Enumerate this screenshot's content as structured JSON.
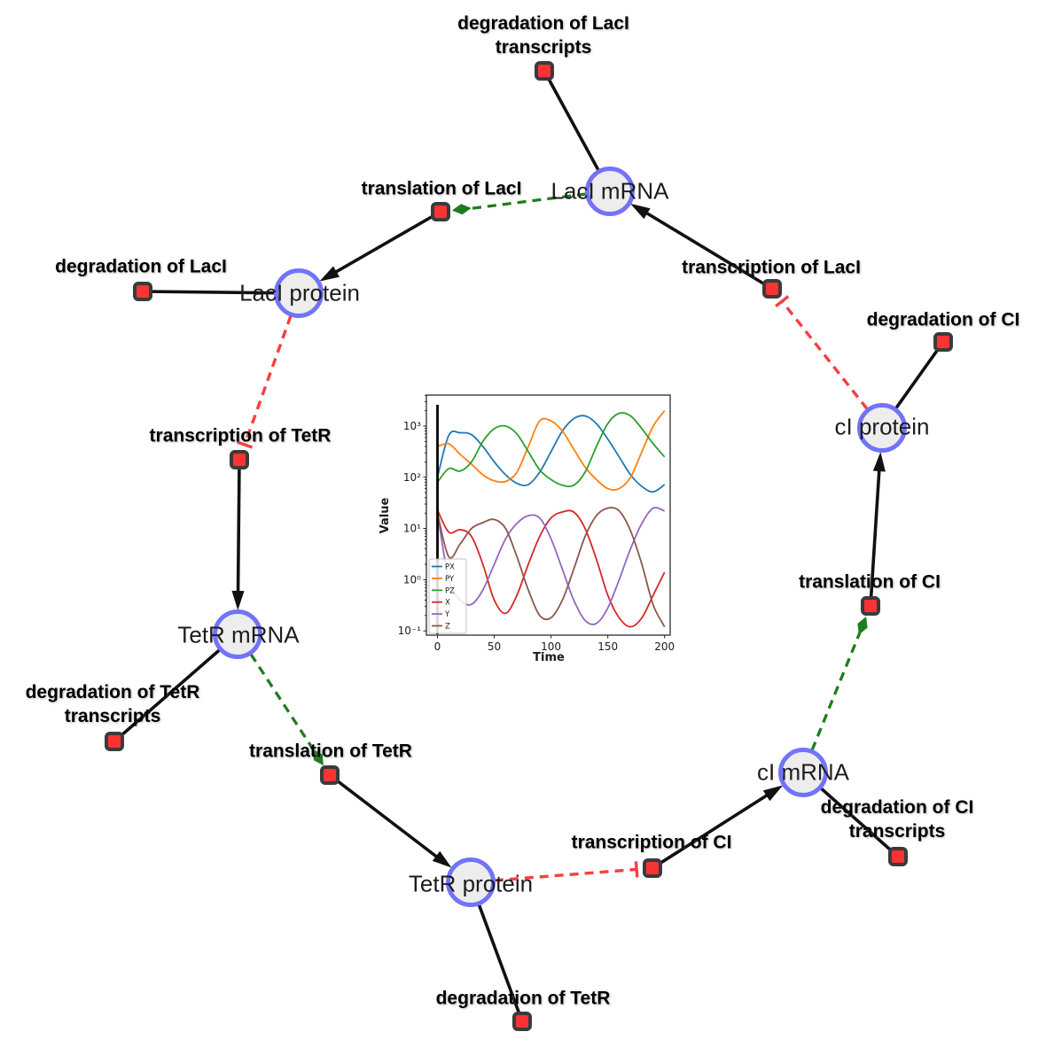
{
  "figure": {
    "description": "Repressilator gene regulatory network with simulation inset"
  },
  "colors": {
    "species-fill": "#ededed",
    "species-border": "#7273fa",
    "reaction-fill": "#fb3333",
    "reaction-border": "#3b3b3b",
    "edge-black": "#111111",
    "edge-green": "#1e7d1e",
    "edge-red": "#f83e3e"
  },
  "diagram": {
    "species": [
      {
        "id": "laci-mrna",
        "label": "LacI mRNA"
      },
      {
        "id": "laci-protein",
        "label": "LacI protein"
      },
      {
        "id": "tetr-mrna",
        "label": "TetR mRNA"
      },
      {
        "id": "tetr-protein",
        "label": "TetR protein"
      },
      {
        "id": "ci-mrna",
        "label": "cI mRNA"
      },
      {
        "id": "ci-protein",
        "label": "cI protein"
      }
    ],
    "reactions": [
      {
        "id": "degradation-of-laci-transcripts",
        "lines": [
          "degradation of LacI",
          "transcripts"
        ]
      },
      {
        "id": "translation-of-laci",
        "lines": [
          "translation of LacI"
        ]
      },
      {
        "id": "degradation-of-laci",
        "lines": [
          "degradation of LacI"
        ]
      },
      {
        "id": "transcription-of-laci",
        "lines": [
          "transcription of LacI"
        ]
      },
      {
        "id": "degradation-of-ci",
        "lines": [
          "degradation of CI"
        ]
      },
      {
        "id": "transcription-of-tetr",
        "lines": [
          "transcription of TetR"
        ]
      },
      {
        "id": "degradation-of-tetr-transcripts",
        "lines": [
          "degradation of TetR",
          "transcripts"
        ]
      },
      {
        "id": "translation-of-tetr",
        "lines": [
          "translation of TetR"
        ]
      },
      {
        "id": "degradation-of-tetr",
        "lines": [
          "degradation of TetR"
        ]
      },
      {
        "id": "transcription-of-ci",
        "lines": [
          "transcription of CI"
        ]
      },
      {
        "id": "translation-of-ci",
        "lines": [
          "translation of CI"
        ]
      },
      {
        "id": "degradation-of-ci-transcripts",
        "lines": [
          "degradation of CI",
          "transcripts"
        ]
      }
    ]
  },
  "chart_data": {
    "type": "line",
    "xlabel": "Time",
    "ylabel": "Value",
    "y_scale": "log",
    "xlim": [
      -10,
      205
    ],
    "ylim": [
      0.085,
      4000
    ],
    "x_ticks": [
      0,
      50,
      100,
      150,
      200
    ],
    "y_ticks": [
      {
        "label": "10³",
        "value": 1000
      },
      {
        "label": "10²",
        "value": 100
      },
      {
        "label": "10¹",
        "value": 10
      },
      {
        "label": "10⁰",
        "value": 1
      },
      {
        "label": "10⁻¹",
        "value": 0.1
      }
    ],
    "legend_position": "lower left",
    "grid": false,
    "x": [
      0,
      10,
      20,
      30,
      40,
      50,
      60,
      70,
      80,
      90,
      100,
      110,
      120,
      130,
      140,
      150,
      160,
      170,
      180,
      190,
      200
    ],
    "series": [
      {
        "name": "PX",
        "color": "#1f77b4",
        "values": [
          100,
          660,
          740,
          680,
          400,
          200,
          112,
          76,
          72,
          126,
          316,
          800,
          1400,
          1580,
          1120,
          560,
          250,
          112,
          66,
          52,
          72
        ]
      },
      {
        "name": "PY",
        "color": "#ff7f0e",
        "values": [
          400,
          450,
          280,
          180,
          112,
          85,
          83,
          126,
          400,
          1260,
          1260,
          800,
          355,
          158,
          90,
          60,
          60,
          100,
          316,
          1000,
          2000
        ]
      },
      {
        "name": "PZ",
        "color": "#2ca02c",
        "values": [
          80,
          148,
          132,
          200,
          500,
          890,
          1000,
          700,
          316,
          140,
          90,
          70,
          70,
          126,
          400,
          1120,
          1780,
          1580,
          890,
          450,
          250
        ]
      },
      {
        "name": "X",
        "color": "#d62728",
        "values": [
          23,
          8.5,
          9.5,
          7,
          2,
          0.4,
          0.22,
          0.5,
          2,
          7,
          16,
          21,
          21,
          10,
          2.5,
          0.5,
          0.18,
          0.12,
          0.18,
          0.5,
          1.4
        ]
      },
      {
        "name": "Y",
        "color": "#9467bd",
        "values": [
          20,
          1.0,
          0.4,
          0.33,
          0.63,
          2,
          6.3,
          12.6,
          17.8,
          16,
          6.3,
          1.6,
          0.4,
          0.16,
          0.14,
          0.28,
          1.0,
          4,
          12.6,
          25,
          22
        ]
      },
      {
        "name": "Z",
        "color": "#8c564b",
        "values": [
          20,
          2.8,
          5,
          10,
          13,
          15,
          10,
          2.8,
          0.63,
          0.2,
          0.18,
          0.4,
          1.6,
          7,
          17.8,
          25,
          22,
          9,
          2,
          0.32,
          0.12
        ]
      }
    ],
    "annotations": [
      {
        "type": "vline",
        "x": 0,
        "color": "#000000"
      }
    ]
  }
}
